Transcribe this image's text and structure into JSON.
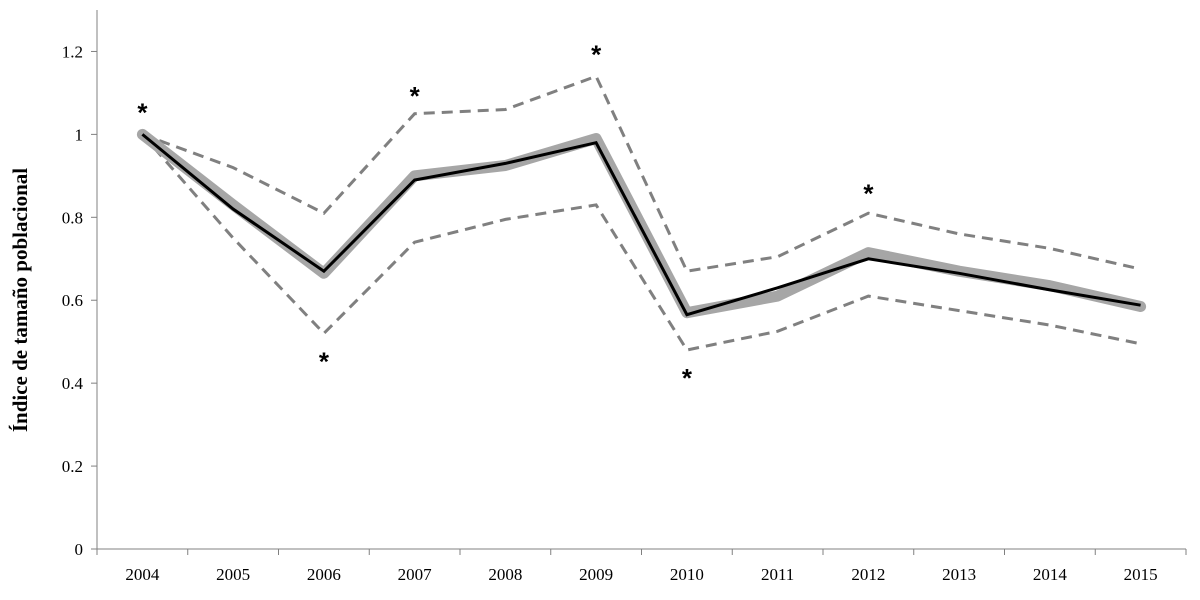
{
  "chart_data": {
    "type": "line",
    "title": "",
    "xlabel": "",
    "ylabel": "Índice de tamaño poblacional",
    "categories": [
      "2004",
      "2005",
      "2006",
      "2007",
      "2008",
      "2009",
      "2010",
      "2011",
      "2012",
      "2013",
      "2014",
      "2015"
    ],
    "ylim": [
      0,
      1.3
    ],
    "yticks": [
      "0",
      "0.2",
      "0.4",
      "0.6",
      "0.8",
      "1",
      "1.2"
    ],
    "ytick_values": [
      0,
      0.2,
      0.4,
      0.6,
      0.8,
      1.0,
      1.2
    ],
    "grid": false,
    "legend": "none",
    "series": [
      {
        "role": "observed",
        "style": "thick-gray",
        "color": "#a6a6a6",
        "values": [
          1.0,
          0.83,
          0.665,
          0.9,
          0.925,
          0.99,
          0.57,
          0.61,
          0.715,
          0.67,
          0.635,
          0.585
        ]
      },
      {
        "role": "fitted",
        "style": "solid-black",
        "color": "#000000",
        "values": [
          1.0,
          0.82,
          0.67,
          0.89,
          0.93,
          0.98,
          0.565,
          0.63,
          0.7,
          0.665,
          0.625,
          0.588
        ]
      },
      {
        "role": "upper-bound",
        "style": "dashed",
        "color": "#808080",
        "values": [
          1.0,
          0.92,
          0.81,
          1.05,
          1.06,
          1.14,
          0.67,
          0.705,
          0.81,
          0.76,
          0.725,
          0.675
        ]
      },
      {
        "role": "lower-bound",
        "style": "dashed",
        "color": "#808080",
        "values": [
          1.0,
          0.75,
          0.52,
          0.74,
          0.795,
          0.83,
          0.48,
          0.525,
          0.61,
          0.575,
          0.54,
          0.495
        ]
      }
    ],
    "annotations": [
      {
        "text": "*",
        "x": "2004",
        "y": 1.06
      },
      {
        "text": "*",
        "x": "2006",
        "y": 0.46
      },
      {
        "text": "*",
        "x": "2007",
        "y": 1.1
      },
      {
        "text": "*",
        "x": "2009",
        "y": 1.2
      },
      {
        "text": "*",
        "x": "2010",
        "y": 0.42
      },
      {
        "text": "*",
        "x": "2012",
        "y": 0.865
      }
    ]
  }
}
